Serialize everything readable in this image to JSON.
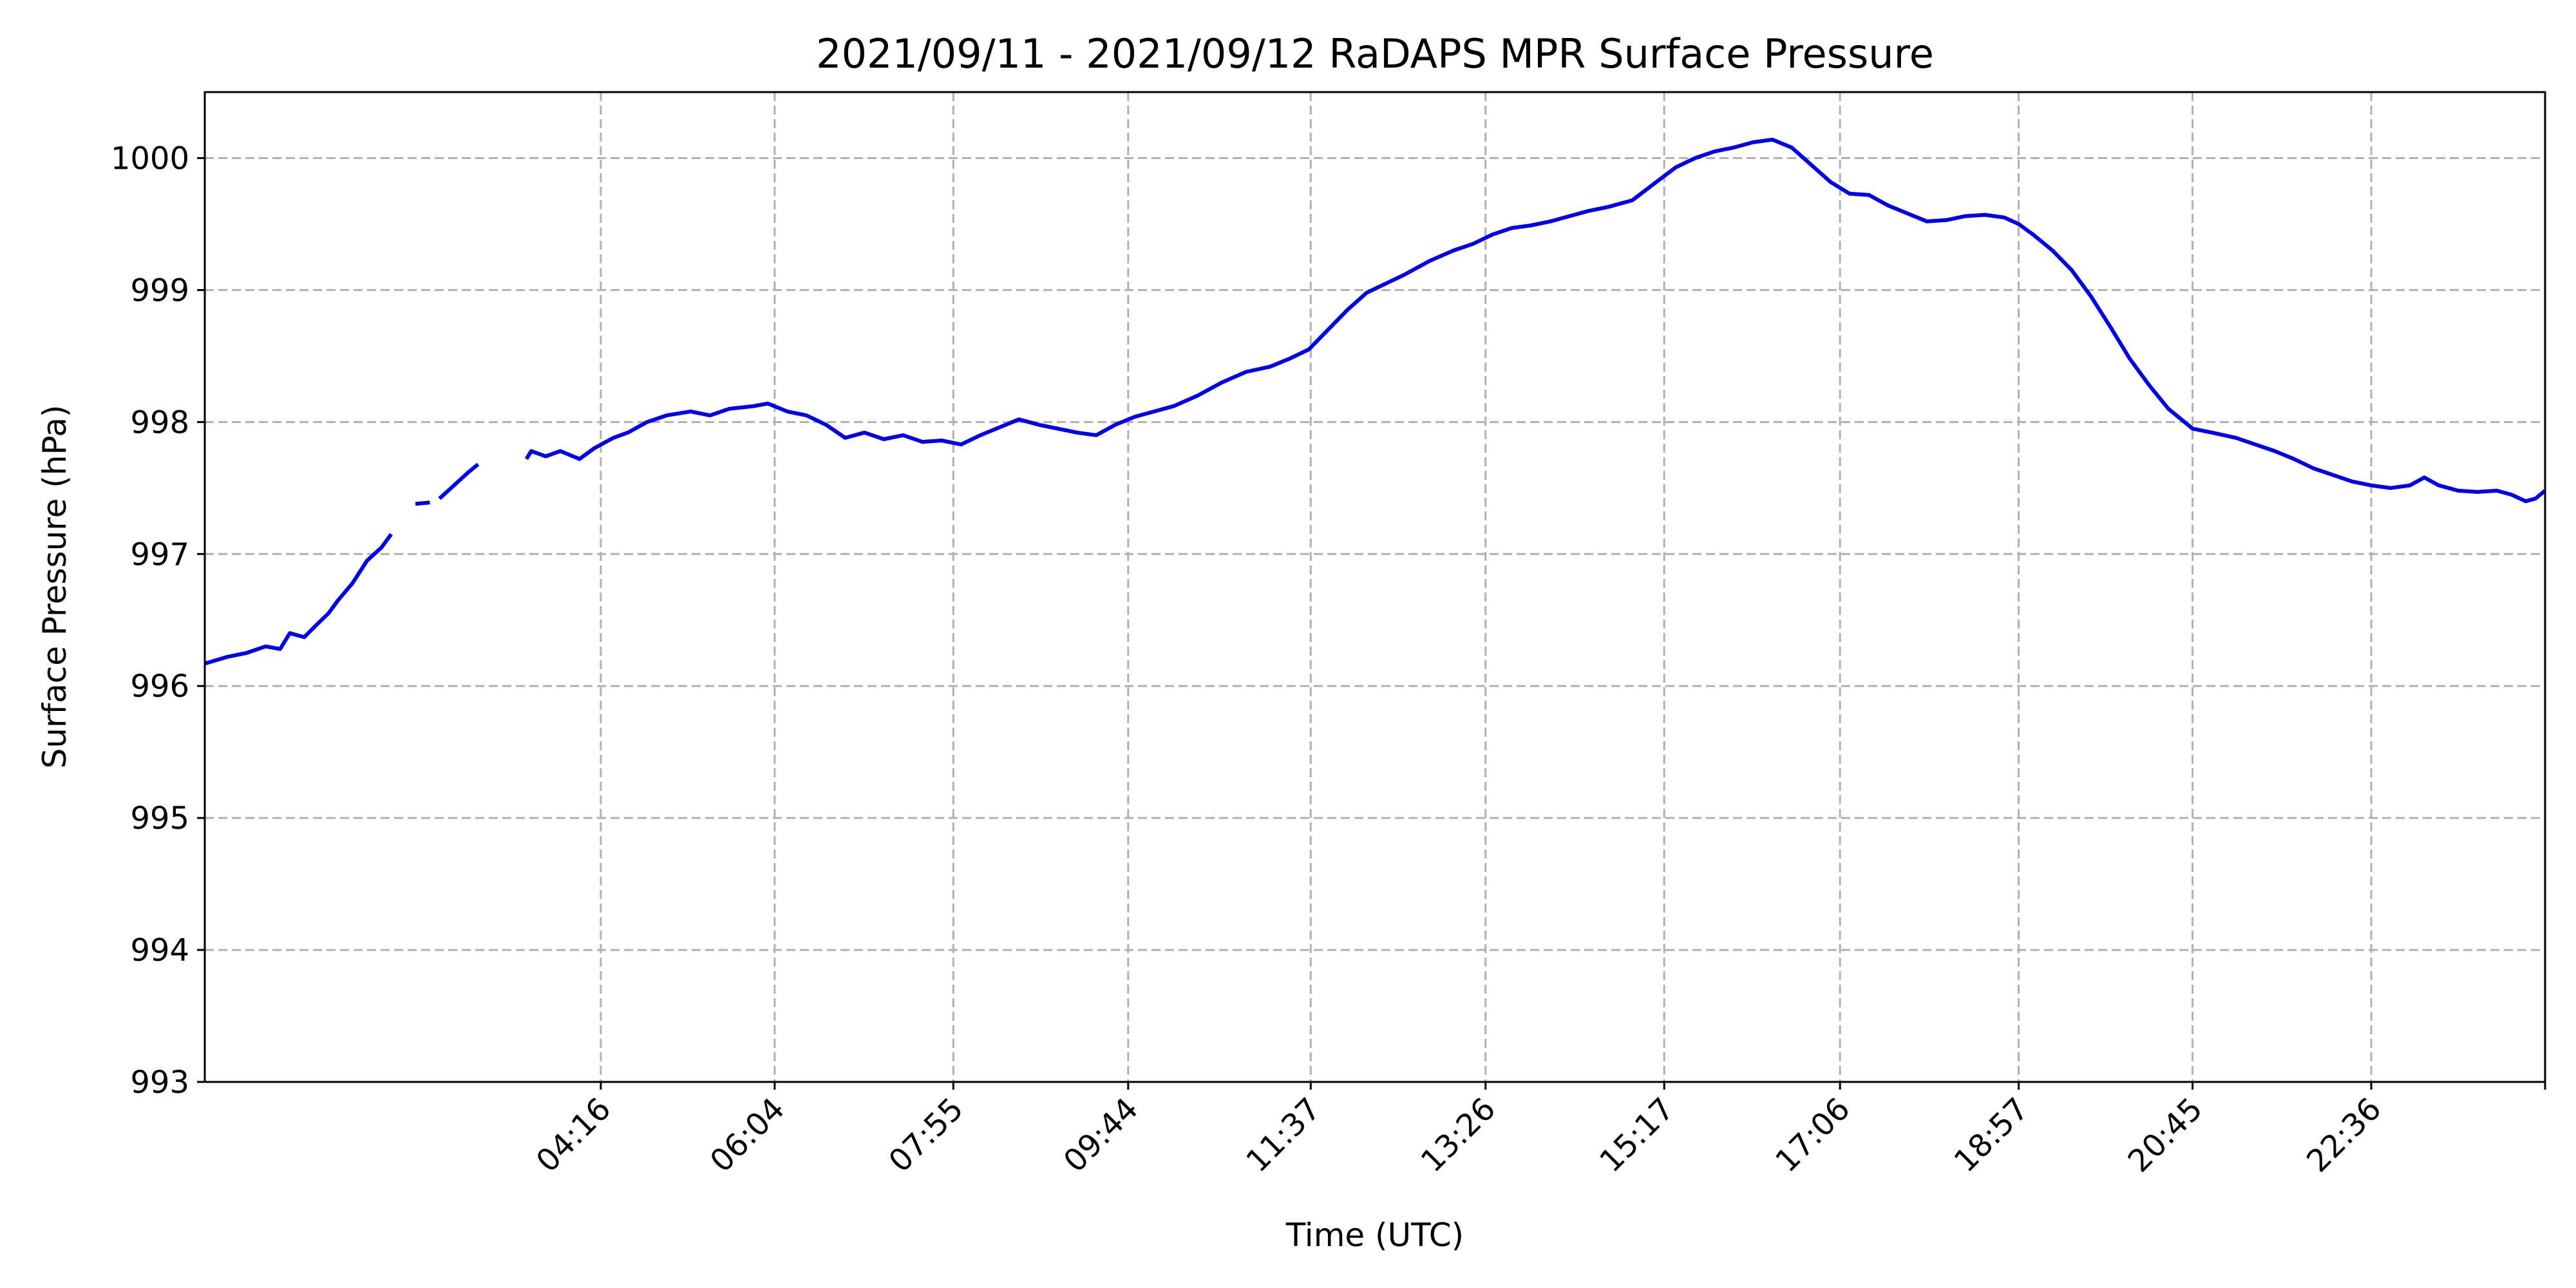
{
  "chart_data": {
    "type": "line",
    "title": "2021/09/11 - 2021/09/12 RaDAPS MPR Surface Pressure",
    "xlabel": "Time (UTC)",
    "ylabel": "Surface Pressure (hPa)",
    "x_unit": "hours UTC",
    "xlim": [
      0.17,
      24.4
    ],
    "ylim": [
      993,
      1000.5
    ],
    "x_ticks": [
      {
        "value": 4.27,
        "label": "04:16"
      },
      {
        "value": 6.07,
        "label": "06:04"
      },
      {
        "value": 7.92,
        "label": "07:55"
      },
      {
        "value": 9.73,
        "label": "09:44"
      },
      {
        "value": 11.62,
        "label": "11:37"
      },
      {
        "value": 13.43,
        "label": "13:26"
      },
      {
        "value": 15.28,
        "label": "15:17"
      },
      {
        "value": 17.1,
        "label": "17:06"
      },
      {
        "value": 18.95,
        "label": "18:57"
      },
      {
        "value": 20.75,
        "label": "20:45"
      },
      {
        "value": 22.6,
        "label": "22:36"
      },
      {
        "value": 24.4,
        "label": ""
      }
    ],
    "y_ticks": [
      993,
      994,
      995,
      996,
      997,
      998,
      999,
      1000
    ],
    "grid": true,
    "line_color": "#0000ee",
    "series": [
      {
        "segments": [
          [
            [
              0.17,
              996.17
            ],
            [
              0.4,
              996.22
            ],
            [
              0.6,
              996.25
            ],
            [
              0.8,
              996.3
            ],
            [
              0.95,
              996.28
            ],
            [
              1.05,
              996.4
            ],
            [
              1.2,
              996.37
            ],
            [
              1.35,
              996.48
            ],
            [
              1.45,
              996.55
            ],
            [
              1.55,
              996.65
            ],
            [
              1.7,
              996.78
            ],
            [
              1.85,
              996.95
            ],
            [
              2.0,
              997.05
            ],
            [
              2.1,
              997.15
            ]
          ],
          [
            [
              2.35,
              997.38
            ],
            [
              2.5,
              997.39
            ]
          ],
          [
            [
              2.6,
              997.42
            ],
            [
              2.75,
              997.52
            ],
            [
              2.9,
              997.62
            ],
            [
              3.0,
              997.68
            ]
          ],
          [
            [
              3.5,
              997.72
            ],
            [
              3.55,
              997.78
            ],
            [
              3.7,
              997.74
            ],
            [
              3.85,
              997.78
            ],
            [
              4.05,
              997.72
            ],
            [
              4.2,
              997.8
            ],
            [
              4.4,
              997.88
            ],
            [
              4.55,
              997.92
            ],
            [
              4.75,
              998.0
            ],
            [
              4.95,
              998.05
            ],
            [
              5.2,
              998.08
            ],
            [
              5.4,
              998.05
            ],
            [
              5.6,
              998.1
            ],
            [
              5.85,
              998.12
            ],
            [
              6.0,
              998.14
            ],
            [
              6.2,
              998.08
            ],
            [
              6.4,
              998.05
            ],
            [
              6.6,
              997.98
            ],
            [
              6.8,
              997.88
            ],
            [
              7.0,
              997.92
            ],
            [
              7.2,
              997.87
            ],
            [
              7.4,
              997.9
            ],
            [
              7.6,
              997.85
            ],
            [
              7.8,
              997.86
            ],
            [
              8.0,
              997.83
            ],
            [
              8.2,
              997.9
            ],
            [
              8.4,
              997.96
            ],
            [
              8.6,
              998.02
            ],
            [
              8.8,
              997.98
            ],
            [
              9.0,
              997.95
            ],
            [
              9.2,
              997.92
            ],
            [
              9.4,
              997.9
            ],
            [
              9.6,
              997.98
            ],
            [
              9.8,
              998.04
            ],
            [
              10.0,
              998.08
            ],
            [
              10.2,
              998.12
            ],
            [
              10.45,
              998.2
            ],
            [
              10.7,
              998.3
            ],
            [
              10.95,
              998.38
            ],
            [
              11.2,
              998.42
            ],
            [
              11.4,
              998.48
            ],
            [
              11.6,
              998.55
            ],
            [
              11.8,
              998.7
            ],
            [
              12.0,
              998.85
            ],
            [
              12.2,
              998.98
            ],
            [
              12.4,
              999.05
            ],
            [
              12.6,
              999.12
            ],
            [
              12.85,
              999.22
            ],
            [
              13.1,
              999.3
            ],
            [
              13.3,
              999.35
            ],
            [
              13.5,
              999.42
            ],
            [
              13.7,
              999.47
            ],
            [
              13.9,
              999.49
            ],
            [
              14.1,
              999.52
            ],
            [
              14.3,
              999.56
            ],
            [
              14.5,
              999.6
            ],
            [
              14.7,
              999.63
            ],
            [
              14.95,
              999.68
            ],
            [
              15.2,
              999.82
            ],
            [
              15.4,
              999.93
            ],
            [
              15.6,
              1000.0
            ],
            [
              15.8,
              1000.05
            ],
            [
              16.0,
              1000.08
            ],
            [
              16.2,
              1000.12
            ],
            [
              16.4,
              1000.14
            ],
            [
              16.6,
              1000.08
            ],
            [
              16.8,
              999.95
            ],
            [
              17.0,
              999.82
            ],
            [
              17.2,
              999.73
            ],
            [
              17.4,
              999.72
            ],
            [
              17.6,
              999.64
            ],
            [
              17.8,
              999.58
            ],
            [
              18.0,
              999.52
            ],
            [
              18.2,
              999.53
            ],
            [
              18.4,
              999.56
            ],
            [
              18.6,
              999.57
            ],
            [
              18.8,
              999.55
            ],
            [
              18.95,
              999.5
            ],
            [
              19.1,
              999.42
            ],
            [
              19.3,
              999.3
            ],
            [
              19.5,
              999.15
            ],
            [
              19.7,
              998.95
            ],
            [
              19.9,
              998.72
            ],
            [
              20.1,
              998.48
            ],
            [
              20.3,
              998.28
            ],
            [
              20.5,
              998.1
            ],
            [
              20.75,
              997.95
            ],
            [
              20.95,
              997.92
            ],
            [
              21.2,
              997.88
            ],
            [
              21.4,
              997.83
            ],
            [
              21.6,
              997.78
            ],
            [
              21.8,
              997.72
            ],
            [
              22.0,
              997.65
            ],
            [
              22.2,
              997.6
            ],
            [
              22.4,
              997.55
            ],
            [
              22.6,
              997.52
            ],
            [
              22.8,
              997.5
            ],
            [
              23.0,
              997.52
            ],
            [
              23.15,
              997.58
            ],
            [
              23.3,
              997.52
            ],
            [
              23.5,
              997.48
            ],
            [
              23.7,
              997.47
            ],
            [
              23.9,
              997.48
            ],
            [
              24.05,
              997.45
            ],
            [
              24.2,
              997.4
            ],
            [
              24.3,
              997.42
            ],
            [
              24.4,
              997.48
            ]
          ]
        ]
      }
    ]
  }
}
